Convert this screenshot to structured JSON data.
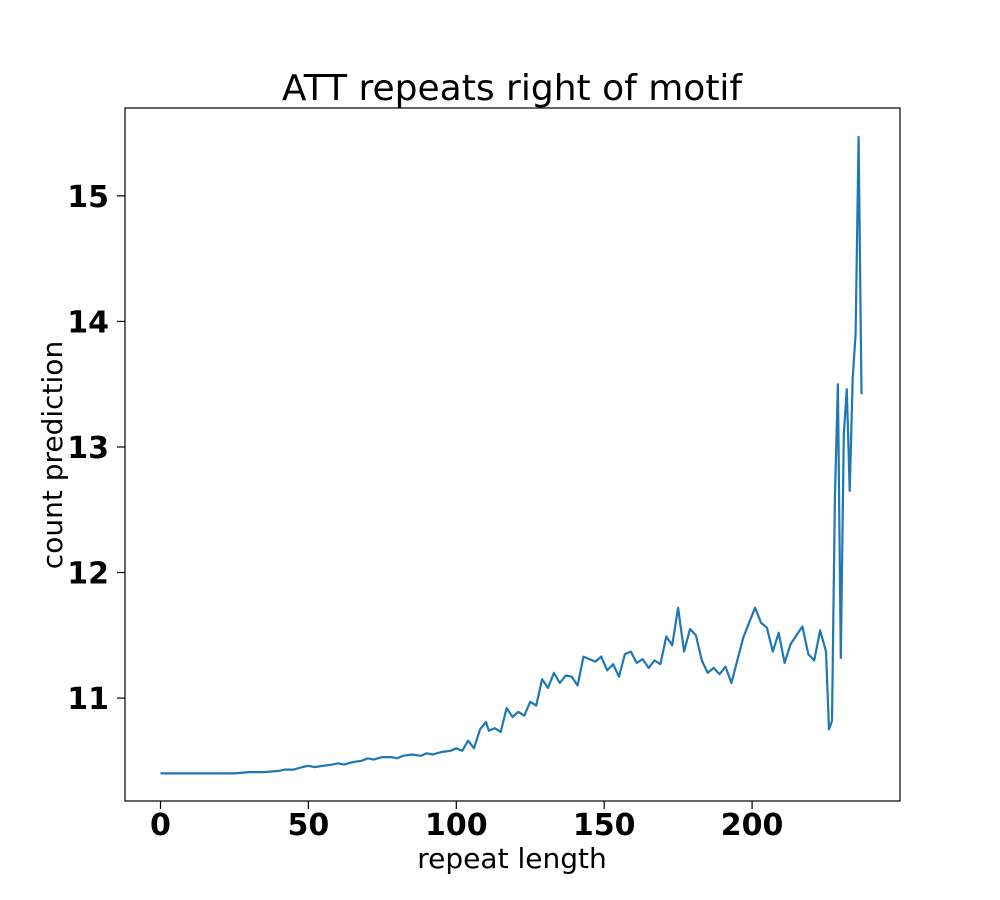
{
  "chart_data": {
    "type": "line",
    "title": "ATT repeats right of motif",
    "xlabel": "repeat length",
    "ylabel": "count prediction",
    "xlim": [
      -12,
      250
    ],
    "ylim": [
      10.18,
      15.7
    ],
    "xticks": [
      0,
      50,
      100,
      150,
      200
    ],
    "yticks": [
      11,
      12,
      13,
      14,
      15
    ],
    "grid": false,
    "series": [
      {
        "color": "#1f77b4",
        "x": [
          0,
          5,
          10,
          15,
          20,
          25,
          30,
          35,
          40,
          42,
          45,
          48,
          50,
          52,
          55,
          58,
          60,
          62,
          65,
          68,
          70,
          72,
          75,
          78,
          80,
          82,
          85,
          88,
          90,
          92,
          95,
          98,
          100,
          102,
          104,
          106,
          108,
          110,
          111,
          113,
          115,
          117,
          119,
          121,
          123,
          125,
          127,
          129,
          131,
          133,
          135,
          137,
          139,
          141,
          143,
          145,
          147,
          149,
          151,
          153,
          155,
          157,
          159,
          161,
          163,
          165,
          167,
          169,
          171,
          173,
          175,
          177,
          179,
          181,
          183,
          185,
          187,
          189,
          191,
          193,
          195,
          197,
          199,
          201,
          203,
          205,
          207,
          209,
          211,
          213,
          215,
          217,
          219,
          221,
          223,
          225,
          226,
          227,
          228,
          229,
          230,
          231,
          232,
          233,
          234,
          235,
          236,
          237
        ],
        "y": [
          10.4,
          10.4,
          10.4,
          10.4,
          10.4,
          10.4,
          10.41,
          10.41,
          10.42,
          10.43,
          10.43,
          10.45,
          10.46,
          10.45,
          10.46,
          10.47,
          10.48,
          10.47,
          10.49,
          10.5,
          10.52,
          10.51,
          10.53,
          10.53,
          10.52,
          10.54,
          10.55,
          10.54,
          10.56,
          10.55,
          10.57,
          10.58,
          10.6,
          10.58,
          10.66,
          10.6,
          10.75,
          10.81,
          10.74,
          10.76,
          10.73,
          10.92,
          10.85,
          10.89,
          10.86,
          10.97,
          10.94,
          11.15,
          11.08,
          11.2,
          11.12,
          11.18,
          11.17,
          11.1,
          11.33,
          11.31,
          11.29,
          11.33,
          11.22,
          11.27,
          11.17,
          11.35,
          11.37,
          11.28,
          11.31,
          11.24,
          11.3,
          11.27,
          11.49,
          11.42,
          11.72,
          11.37,
          11.55,
          11.5,
          11.3,
          11.2,
          11.24,
          11.19,
          11.25,
          11.12,
          11.3,
          11.48,
          11.6,
          11.72,
          11.6,
          11.56,
          11.37,
          11.52,
          11.28,
          11.43,
          11.5,
          11.57,
          11.35,
          11.3,
          11.54,
          11.37,
          10.75,
          10.82,
          12.6,
          13.5,
          11.32,
          13.1,
          13.46,
          12.65,
          13.55,
          13.9,
          15.47,
          13.42
        ]
      }
    ]
  }
}
